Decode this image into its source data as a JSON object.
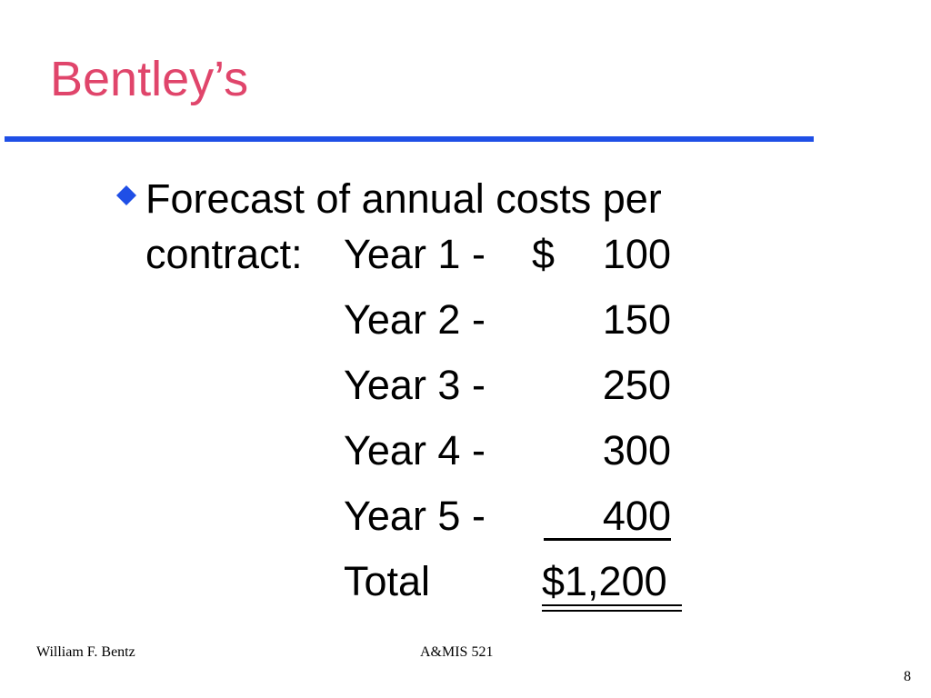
{
  "title": "Bentley’s",
  "bullet": {
    "lines": [
      "Forecast of annual costs per",
      "contract:"
    ]
  },
  "schedule": {
    "rows": [
      [
        "Year 1 -",
        "$",
        "100"
      ],
      [
        "Year 2 -",
        "",
        "150"
      ],
      [
        "Year 3 -",
        "",
        "250"
      ],
      [
        "Year 4 -",
        "",
        "300"
      ],
      [
        "Year 5 -",
        "",
        "400"
      ]
    ],
    "total": [
      "Total",
      "$1,200"
    ]
  },
  "footer": {
    "author": "William F. Bentz",
    "course": "A&MIS 521",
    "page": "8"
  }
}
